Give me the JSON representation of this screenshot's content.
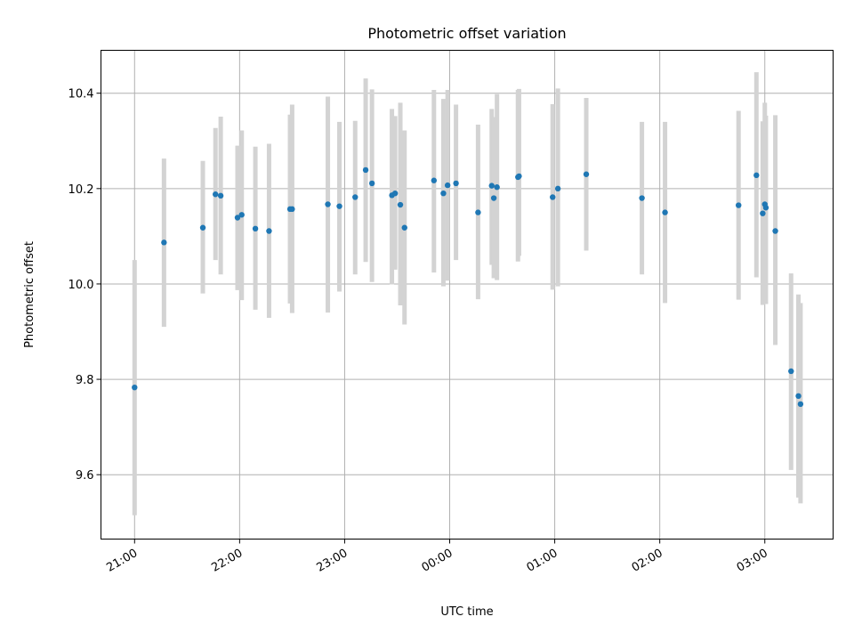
{
  "chart_data": {
    "type": "scatter",
    "title": "Photometric offset variation",
    "xlabel": "UTC time",
    "ylabel": "Photometric offset",
    "x_start_time": "21:00",
    "xlim": [
      -0.32,
      6.65
    ],
    "ylim": [
      9.465,
      10.49
    ],
    "x_ticks": [
      {
        "value": 0,
        "label": "21:00"
      },
      {
        "value": 1,
        "label": "22:00"
      },
      {
        "value": 2,
        "label": "23:00"
      },
      {
        "value": 3,
        "label": "00:00"
      },
      {
        "value": 4,
        "label": "01:00"
      },
      {
        "value": 5,
        "label": "02:00"
      },
      {
        "value": 6,
        "label": "03:00"
      }
    ],
    "y_ticks": [
      9.6,
      9.8,
      10.0,
      10.2,
      10.4
    ],
    "grid": true,
    "colors": {
      "point": "#1f77b4",
      "errorbar": "#d3d3d3"
    },
    "series": [
      {
        "name": "Photometric offset",
        "x": [
          0.0,
          0.28,
          0.65,
          0.77,
          0.82,
          0.98,
          1.02,
          1.15,
          1.28,
          1.48,
          1.5,
          1.84,
          1.95,
          2.1,
          2.2,
          2.26,
          2.45,
          2.48,
          2.53,
          2.57,
          2.85,
          2.94,
          2.98,
          3.06,
          3.27,
          3.4,
          3.42,
          3.45,
          3.65,
          3.66,
          3.98,
          4.03,
          4.3,
          4.83,
          5.05,
          5.75,
          5.92,
          5.98,
          6.0,
          6.01,
          6.1,
          6.25,
          6.32,
          6.34
        ],
        "y": [
          9.783,
          10.087,
          10.118,
          10.188,
          10.185,
          10.139,
          10.145,
          10.116,
          10.111,
          10.157,
          10.157,
          10.167,
          10.163,
          10.182,
          10.239,
          10.211,
          10.186,
          10.19,
          10.166,
          10.118,
          10.217,
          10.19,
          10.207,
          10.211,
          10.15,
          10.206,
          10.18,
          10.203,
          10.224,
          10.226,
          10.182,
          10.2,
          10.23,
          10.18,
          10.15,
          10.165,
          10.228,
          10.148,
          10.167,
          10.16,
          10.111,
          9.817,
          9.765,
          9.748
        ],
        "yerr_low": [
          0.268,
          0.177,
          0.138,
          0.138,
          0.165,
          0.152,
          0.179,
          0.17,
          0.182,
          0.198,
          0.218,
          0.227,
          0.179,
          0.162,
          0.193,
          0.207,
          0.187,
          0.16,
          0.211,
          0.203,
          0.193,
          0.195,
          0.2,
          0.161,
          0.182,
          0.166,
          0.168,
          0.195,
          0.177,
          0.167,
          0.194,
          0.205,
          0.16,
          0.16,
          0.19,
          0.198,
          0.214,
          0.192,
          0.205,
          0.202,
          0.239,
          0.207,
          0.213,
          0.208
        ],
        "yerr_high": [
          0.267,
          0.176,
          0.14,
          0.139,
          0.166,
          0.151,
          0.177,
          0.172,
          0.183,
          0.198,
          0.219,
          0.226,
          0.177,
          0.16,
          0.192,
          0.197,
          0.181,
          0.162,
          0.214,
          0.204,
          0.19,
          0.198,
          0.2,
          0.165,
          0.184,
          0.161,
          0.17,
          0.195,
          0.183,
          0.183,
          0.195,
          0.21,
          0.16,
          0.16,
          0.19,
          0.198,
          0.216,
          0.193,
          0.213,
          0.193,
          0.243,
          0.205,
          0.213,
          0.212
        ]
      }
    ]
  }
}
